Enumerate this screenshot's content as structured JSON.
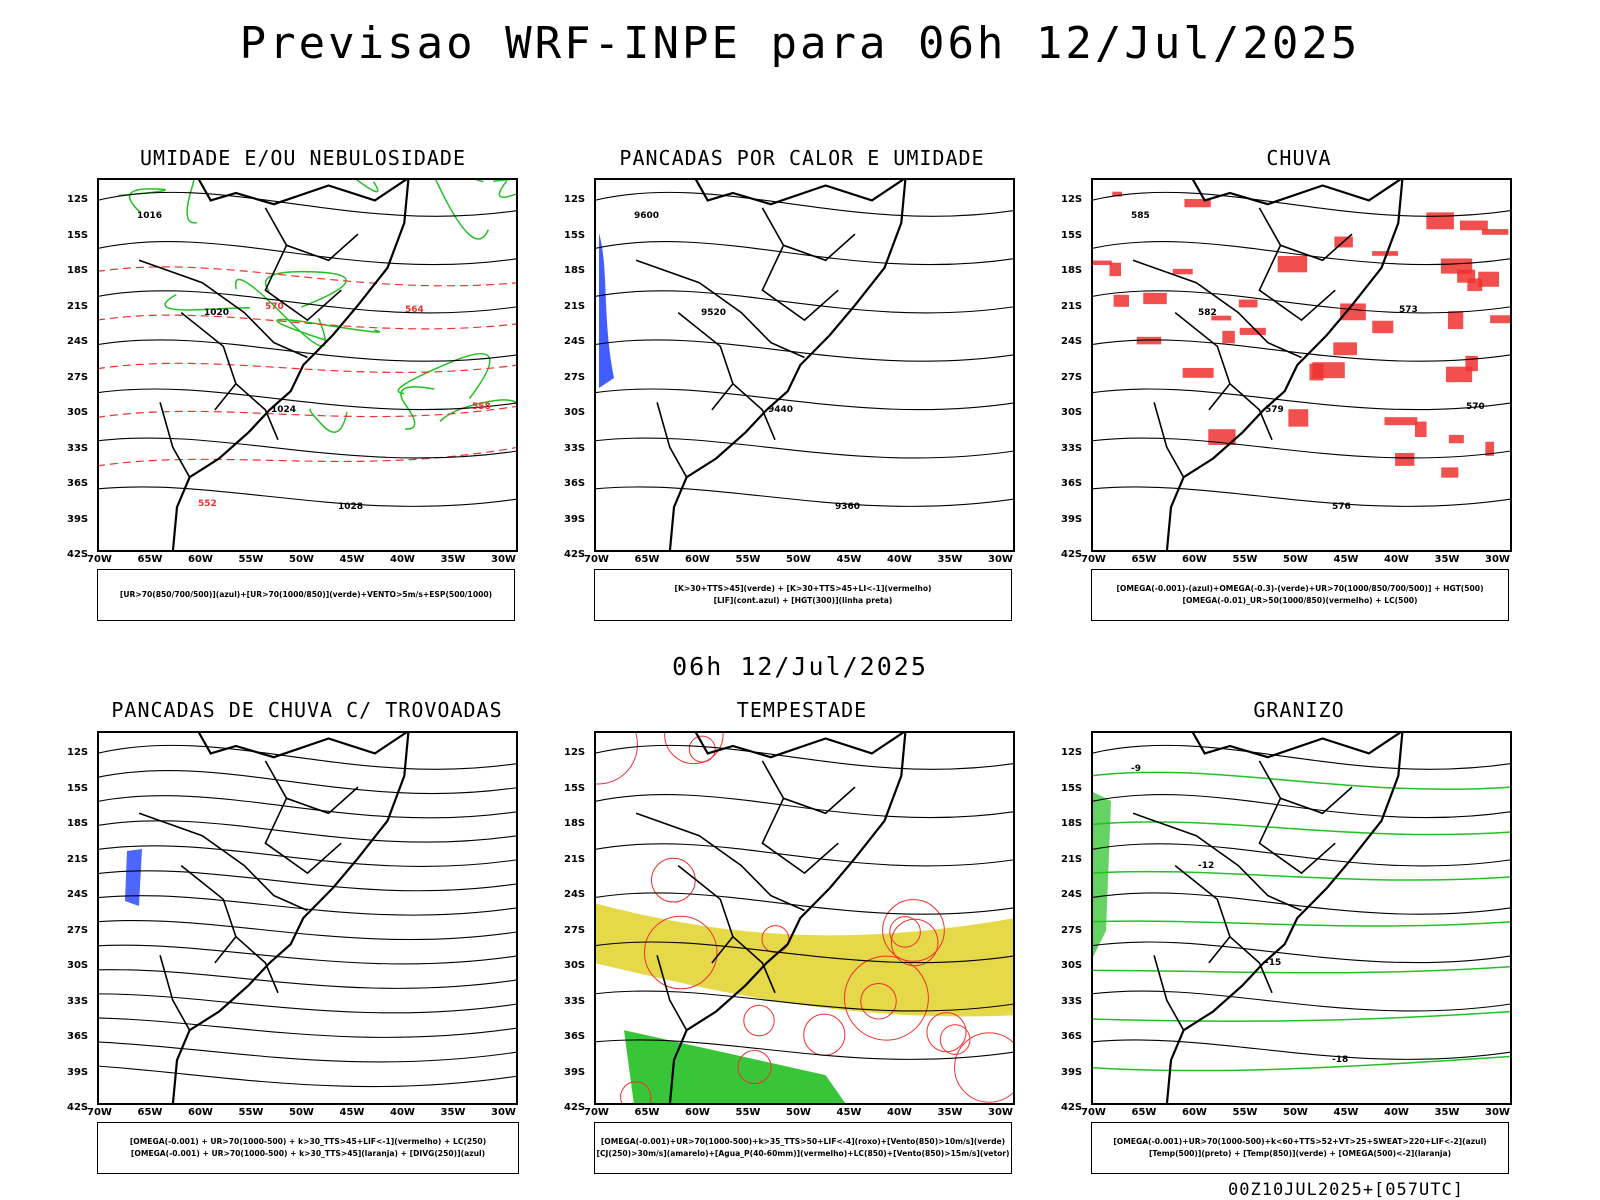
{
  "header": {
    "title": "Previsao WRF-INPE  para 06h 12/Jul/2025"
  },
  "middle": {
    "title": "06h 12/Jul/2025"
  },
  "footer": {
    "run": "00Z10JUL2025+[057UTC]"
  },
  "axes": {
    "lat_labels": [
      "12S",
      "15S",
      "18S",
      "21S",
      "24S",
      "27S",
      "30S",
      "33S",
      "36S",
      "39S",
      "42S"
    ],
    "lon_labels": [
      "70W",
      "65W",
      "60W",
      "55W",
      "50W",
      "45W",
      "40W",
      "35W",
      "30W"
    ]
  },
  "panels": [
    {
      "id": "umidade",
      "title": "UMIDADE E/OU NEBULOSIDADE",
      "legend": [
        "[UR>70(850/700/500)](azul)+[UR>70(1000/850)](verde)+VENTO>5m/s+ESP(500/1000)"
      ],
      "contour_labels": [
        "1016",
        "1020",
        "1024",
        "1028",
        "564",
        "558",
        "552",
        "570"
      ]
    },
    {
      "id": "pancadas-calor",
      "title": "PANCADAS POR CALOR E UMIDADE",
      "legend": [
        "[K>30+TTS>45](verde) + [K>30+TTS>45+LI<-1](vermelho)",
        "[LIF](cont.azul) + [HGT(300)](linha preta)"
      ],
      "contour_labels": [
        "9600",
        "9520",
        "9440",
        "9360"
      ]
    },
    {
      "id": "chuva",
      "title": "CHUVA",
      "legend": [
        "[OMEGA(-0.001)-(azul)+OMEGA(-0.3)-(verde)+UR>70(1000/850/700/500)] + HGT(500)",
        "[OMEGA(-0.01)_UR>50(1000/850)(vermelho) + LC(500)"
      ],
      "contour_labels": [
        "585",
        "582",
        "579",
        "576",
        "573",
        "570"
      ]
    },
    {
      "id": "pancadas-trovoadas",
      "title": "PANCADAS DE CHUVA C/ TROVOADAS",
      "legend": [
        "[OMEGA(-0.001) + UR>70(1000-500) + k>30_TTS>45+LIF<-1](vermelho) + LC(250)",
        "[OMEGA(-0.001) + UR>70(1000-500) + k>30_TTS>45](laranja) + [DIVG(250)](azul)"
      ],
      "contour_labels": []
    },
    {
      "id": "tempestade",
      "title": "TEMPESTADE",
      "legend": [
        "[OMEGA(-0.001)+UR>70(1000-500)+k>35_TTS>50+LIF<-4](roxo)+[Vento(850)>10m/s](verde)",
        "[CJ(250)>30m/s](amarelo)+[Agua_P(40-60mm)](vermelho)+LC(850)+[Vento(850)>15m/s](vetor)"
      ],
      "contour_labels": []
    },
    {
      "id": "granizo",
      "title": "GRANIZO",
      "legend": [
        "[OMEGA(-0.001)+UR>70(1000-500)+k<60+TTS>52+VT>25+SWEAT>220+LIF<-2](azul)",
        "[Temp(500)](preto) + [Temp(850)](verde) + [OMEGA(500)<-2](laranja)"
      ],
      "contour_labels": [
        "-9",
        "-12",
        "-15",
        "-18"
      ]
    }
  ],
  "colors": {
    "contour": "#000000",
    "humidity_green": "#22c022",
    "red": "#f03030",
    "blue": "#2040ff",
    "yellow": "#e2d435",
    "orange": "#ff8c1a"
  }
}
